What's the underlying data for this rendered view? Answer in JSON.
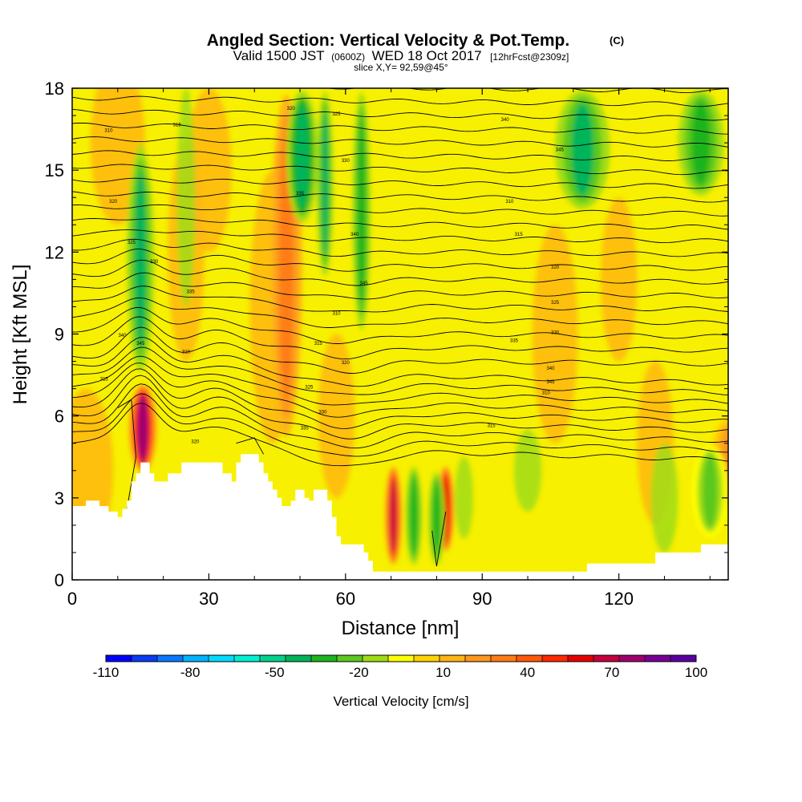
{
  "chart_data": {
    "type": "heatmap",
    "title": "Angled Section: Vertical Velocity & Pot.Temp.",
    "title_suffix": "(C)",
    "subtitle_parts": [
      "Valid 1500 JST",
      "(0600Z)",
      "WED 18 Oct 2017",
      "[12hrFcst@2309z]"
    ],
    "subtitle2": "slice X,Y= 92,59@45°",
    "xlabel": "Distance [nm]",
    "ylabel": "Height [Kft MSL]",
    "xlim": [
      0,
      144
    ],
    "ylim": [
      0,
      18
    ],
    "xticks": [
      0,
      30,
      60,
      90,
      120
    ],
    "yticks": [
      0,
      3,
      6,
      9,
      12,
      15,
      18
    ],
    "colorbar": {
      "label": "Vertical Velocity [cm/s]",
      "tick_labels": [
        "-110",
        "-80",
        "-50",
        "-20",
        "10",
        "40",
        "70",
        "100"
      ],
      "tick_values": [
        -110,
        -80,
        -50,
        -20,
        10,
        40,
        70,
        100
      ],
      "colors": [
        "#0000ff",
        "#0a3cf5",
        "#0a78ff",
        "#00b4ff",
        "#00dcff",
        "#00f0d2",
        "#00d28c",
        "#00b45a",
        "#1eb41e",
        "#5ac81e",
        "#a0dc14",
        "#ffff00",
        "#ffd200",
        "#ffb414",
        "#ff961e",
        "#ff7d14",
        "#ff5a0a",
        "#ff2800",
        "#e60000",
        "#c8003c",
        "#a0006e",
        "#780096",
        "#5a00a0"
      ]
    },
    "terrain_kft": [
      [
        0,
        2.7
      ],
      [
        3,
        2.7
      ],
      [
        3,
        2.9
      ],
      [
        6,
        2.9
      ],
      [
        6,
        2.7
      ],
      [
        8,
        2.7
      ],
      [
        8,
        2.5
      ],
      [
        10,
        2.5
      ],
      [
        10,
        2.3
      ],
      [
        11,
        2.3
      ],
      [
        11,
        2.6
      ],
      [
        12,
        2.6
      ],
      [
        12,
        2.9
      ],
      [
        13,
        2.9
      ],
      [
        13,
        3.6
      ],
      [
        14,
        3.6
      ],
      [
        14,
        3.9
      ],
      [
        15,
        3.9
      ],
      [
        15,
        4.3
      ],
      [
        17,
        4.3
      ],
      [
        17,
        3.9
      ],
      [
        18,
        3.9
      ],
      [
        18,
        3.6
      ],
      [
        21,
        3.6
      ],
      [
        21,
        3.9
      ],
      [
        24,
        3.9
      ],
      [
        24,
        4.3
      ],
      [
        33,
        4.3
      ],
      [
        33,
        3.9
      ],
      [
        35,
        3.9
      ],
      [
        35,
        3.6
      ],
      [
        36,
        3.6
      ],
      [
        36,
        4.3
      ],
      [
        37,
        4.3
      ],
      [
        37,
        4.6
      ],
      [
        41,
        4.6
      ],
      [
        41,
        4.3
      ],
      [
        42,
        4.3
      ],
      [
        42,
        3.9
      ],
      [
        43,
        3.9
      ],
      [
        43,
        3.6
      ],
      [
        44,
        3.6
      ],
      [
        44,
        3.3
      ],
      [
        45,
        3.3
      ],
      [
        45,
        3.0
      ],
      [
        46,
        3.0
      ],
      [
        46,
        2.7
      ],
      [
        48,
        2.7
      ],
      [
        48,
        2.9
      ],
      [
        49,
        2.9
      ],
      [
        49,
        3.3
      ],
      [
        51,
        3.3
      ],
      [
        51,
        3.0
      ],
      [
        52,
        3.0
      ],
      [
        52,
        2.9
      ],
      [
        53,
        2.9
      ],
      [
        53,
        3.3
      ],
      [
        56,
        3.3
      ],
      [
        56,
        2.9
      ],
      [
        57,
        2.9
      ],
      [
        57,
        2.3
      ],
      [
        58,
        2.3
      ],
      [
        58,
        1.6
      ],
      [
        59,
        1.6
      ],
      [
        59,
        1.3
      ],
      [
        64,
        1.3
      ],
      [
        64,
        1.0
      ],
      [
        65,
        1.0
      ],
      [
        65,
        0.7
      ],
      [
        66,
        0.7
      ],
      [
        66,
        0.3
      ],
      [
        113,
        0.3
      ],
      [
        113,
        0.6
      ],
      [
        128,
        0.6
      ],
      [
        128,
        1.0
      ],
      [
        138,
        1.0
      ],
      [
        138,
        1.3
      ],
      [
        144,
        1.3
      ]
    ],
    "updrafts": [
      {
        "x": 15.5,
        "y0": 3.9,
        "y1": 7.2,
        "w": 3.0,
        "v": 80
      },
      {
        "x": 47,
        "y0": 5,
        "y1": 18,
        "w": 3.5,
        "v": 30
      },
      {
        "x": 70.5,
        "y0": 0.5,
        "y1": 4.2,
        "w": 1.8,
        "v": 70
      },
      {
        "x": 82,
        "y0": 1,
        "y1": 4.2,
        "w": 1.8,
        "v": 65
      },
      {
        "x": 144,
        "y0": 2.5,
        "y1": 6.0,
        "w": 4.0,
        "v": 25
      }
    ],
    "downdrafts": [
      {
        "x": 15,
        "y0": 7.5,
        "y1": 16,
        "w": 3.0,
        "v": -40
      },
      {
        "x": 50.5,
        "y0": 13,
        "y1": 18,
        "w": 3.5,
        "v": -45
      },
      {
        "x": 55.5,
        "y0": 11,
        "y1": 18,
        "w": 1.8,
        "v": -40
      },
      {
        "x": 63.5,
        "y0": 9,
        "y1": 18,
        "w": 2.0,
        "v": -30
      },
      {
        "x": 75,
        "y0": 0.5,
        "y1": 4.2,
        "w": 1.8,
        "v": -30
      },
      {
        "x": 80,
        "y0": 0.5,
        "y1": 4.0,
        "w": 1.8,
        "v": -35
      },
      {
        "x": 112,
        "y0": 13.5,
        "y1": 18,
        "w": 6.0,
        "v": -40
      },
      {
        "x": 138,
        "y0": 14,
        "y1": 18,
        "w": 5.0,
        "v": -35
      },
      {
        "x": 140,
        "y0": 1.5,
        "y1": 5.0,
        "w": 4.0,
        "v": -20
      }
    ],
    "contour_label_values": [
      "310",
      "315",
      "320",
      "325",
      "330",
      "335",
      "340",
      "345"
    ]
  }
}
